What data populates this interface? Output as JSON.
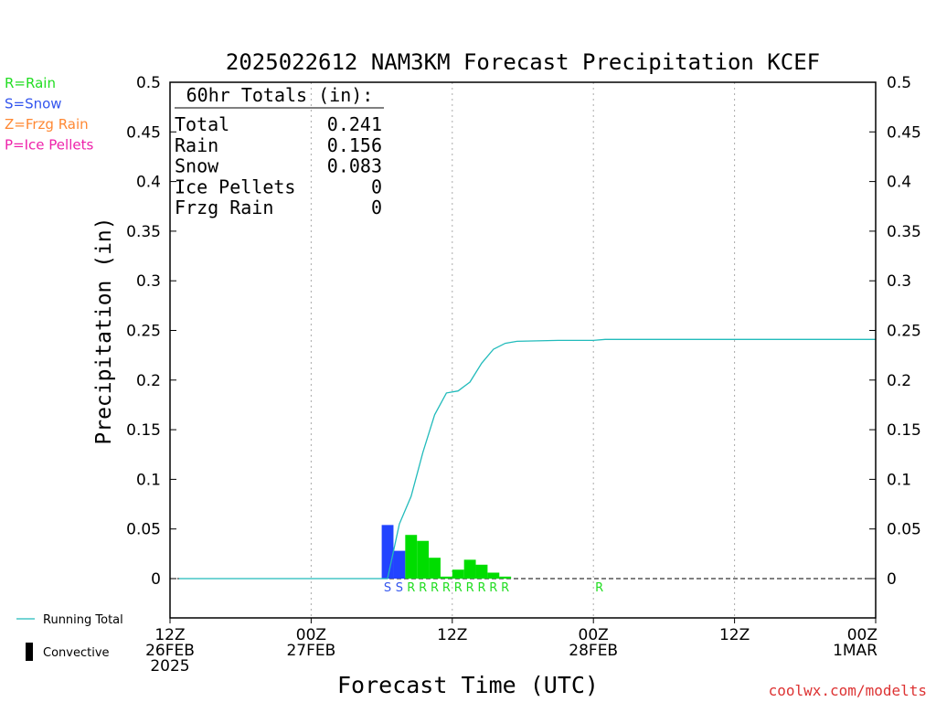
{
  "chart_data": {
    "type": "bar",
    "title": "2025022612 NAM3KM Forecast Precipitation KCEF",
    "xlabel": "Forecast Time (UTC)",
    "ylabel": "Precipitation (in)",
    "ylim": [
      0,
      0.5
    ],
    "y_ticks": [
      "0",
      "0.05",
      "0.1",
      "0.15",
      "0.2",
      "0.25",
      "0.3",
      "0.35",
      "0.4",
      "0.45",
      "0.5"
    ],
    "xlim_hours": [
      0,
      60
    ],
    "x_ticks": [
      {
        "hour": 0,
        "lines": [
          "12Z",
          "26FEB",
          "2025"
        ]
      },
      {
        "hour": 12,
        "lines": [
          "00Z",
          "27FEB"
        ]
      },
      {
        "hour": 24,
        "lines": [
          "12Z"
        ]
      },
      {
        "hour": 36,
        "lines": [
          "00Z",
          "28FEB"
        ]
      },
      {
        "hour": 48,
        "lines": [
          "12Z"
        ]
      },
      {
        "hour": 60,
        "lines": [
          "00Z",
          "1MAR"
        ]
      }
    ],
    "grid": "vertical-dotted",
    "ptype_legend": [
      {
        "code": "R",
        "label": "R=Rain",
        "color": "#22dd22"
      },
      {
        "code": "S",
        "label": "S=Snow",
        "color": "#3355ee"
      },
      {
        "code": "Z",
        "label": "Z=Frzg Rain",
        "color": "#ff8833"
      },
      {
        "code": "P",
        "label": "P=Ice Pellets",
        "color": "#ee22aa"
      }
    ],
    "totals": {
      "header": "60hr Totals (in):",
      "rows": [
        {
          "label": "Total",
          "value": "0.241"
        },
        {
          "label": "Rain",
          "value": "0.156"
        },
        {
          "label": "Snow",
          "value": "0.083"
        },
        {
          "label": "Ice Pellets",
          "value": "0"
        },
        {
          "label": "Frzg Rain",
          "value": "0"
        }
      ]
    },
    "bars": [
      {
        "hour": 19,
        "value": 0.054,
        "type": "S"
      },
      {
        "hour": 20,
        "value": 0.028,
        "type": "S"
      },
      {
        "hour": 21,
        "value": 0.044,
        "type": "R"
      },
      {
        "hour": 22,
        "value": 0.038,
        "type": "R"
      },
      {
        "hour": 23,
        "value": 0.021,
        "type": "R"
      },
      {
        "hour": 24,
        "value": 0.002,
        "type": "R"
      },
      {
        "hour": 25,
        "value": 0.009,
        "type": "R"
      },
      {
        "hour": 26,
        "value": 0.019,
        "type": "R"
      },
      {
        "hour": 27,
        "value": 0.014,
        "type": "R"
      },
      {
        "hour": 28,
        "value": 0.006,
        "type": "R"
      },
      {
        "hour": 29,
        "value": 0.002,
        "type": "R"
      },
      {
        "hour": 37,
        "value": 0.0,
        "type": "R"
      }
    ],
    "running_total": {
      "name": "Running Total",
      "color": "#22bbbb",
      "points": [
        [
          0.75,
          0
        ],
        [
          18.5,
          0
        ],
        [
          19.5,
          0.055
        ],
        [
          20.5,
          0.083
        ],
        [
          21.5,
          0.127
        ],
        [
          22.5,
          0.165
        ],
        [
          23.5,
          0.187
        ],
        [
          24.5,
          0.189
        ],
        [
          25.5,
          0.198
        ],
        [
          26.5,
          0.217
        ],
        [
          27.5,
          0.231
        ],
        [
          28.5,
          0.237
        ],
        [
          29.5,
          0.239
        ],
        [
          33,
          0.24
        ],
        [
          36,
          0.24
        ],
        [
          37,
          0.241
        ],
        [
          60,
          0.241
        ]
      ]
    },
    "series_legend": [
      {
        "key": "running",
        "label": "Running Total"
      },
      {
        "key": "convective",
        "label": "Convective"
      }
    ],
    "credit": "coolwx.com/modelts"
  }
}
